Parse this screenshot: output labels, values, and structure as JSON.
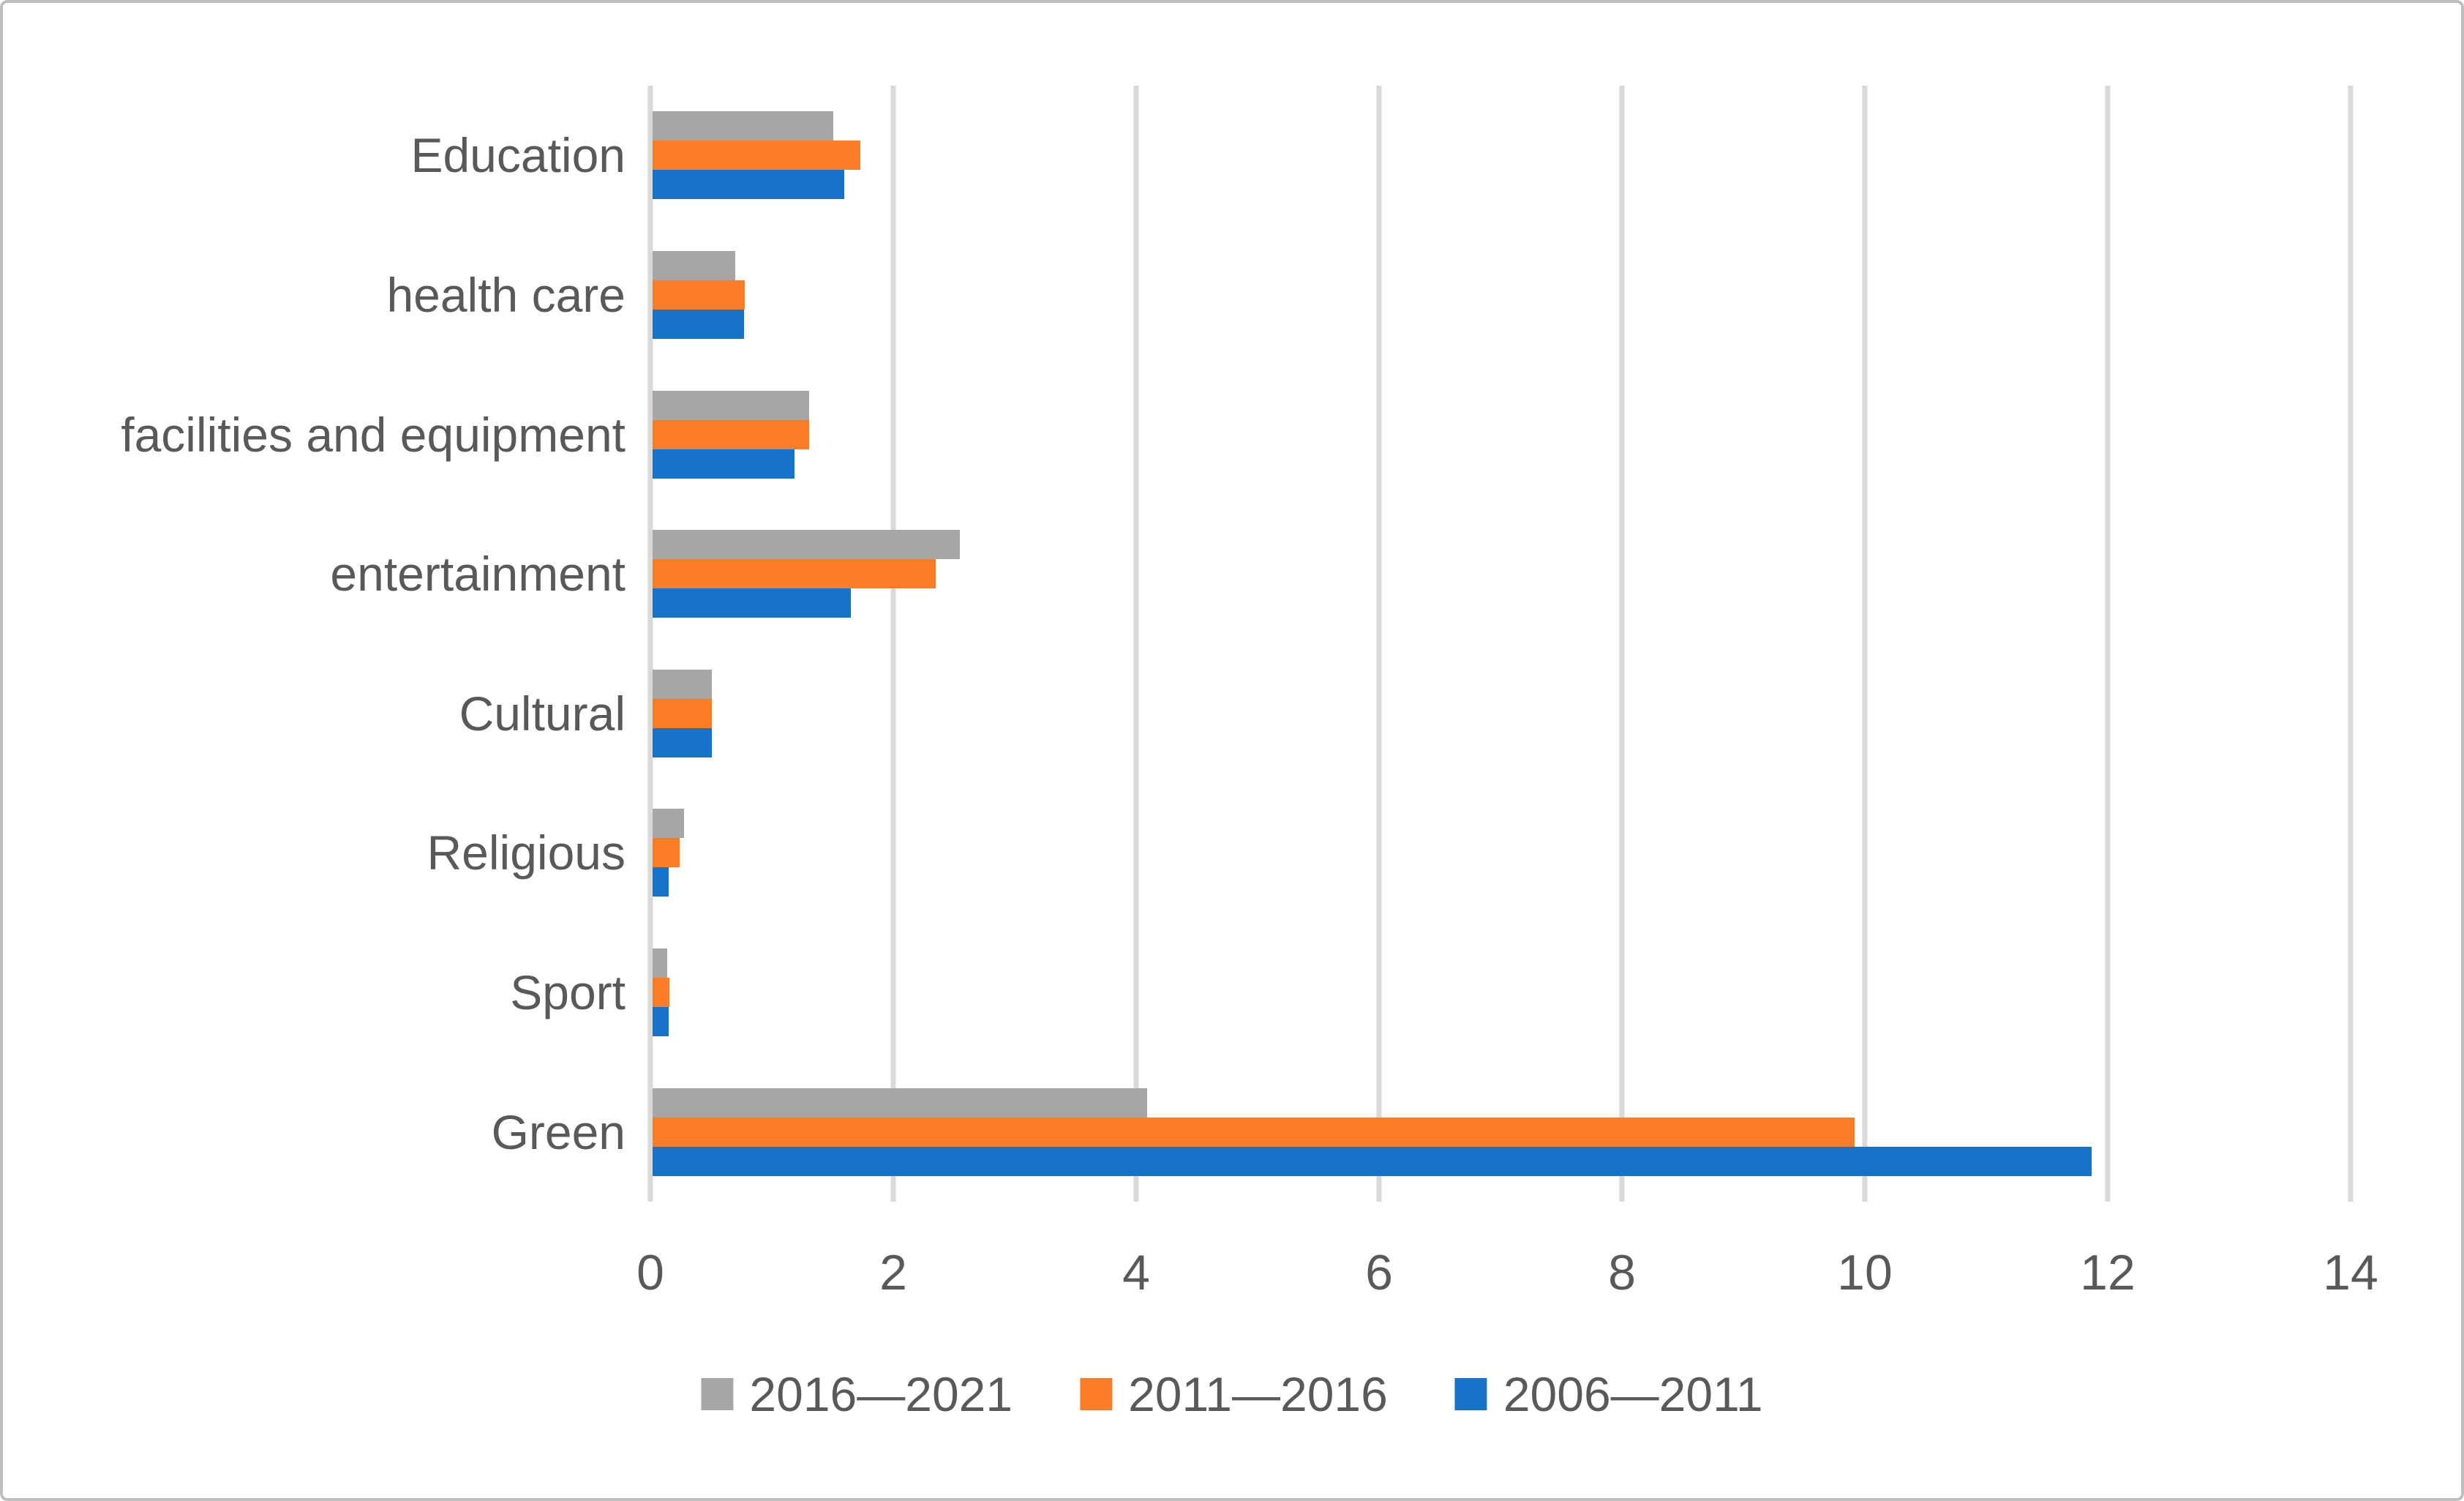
{
  "chart_data": {
    "type": "bar",
    "orientation": "horizontal",
    "title": "",
    "xlabel": "",
    "ylabel": "",
    "categories": [
      "Education",
      "health care",
      "facilities and equipment",
      "entertainment",
      "Cultural",
      "Religious",
      "Sport",
      "Green"
    ],
    "series": [
      {
        "name": "2016—2021",
        "color": "#A6A6A6",
        "values": [
          1.49,
          0.68,
          1.29,
          2.53,
          0.49,
          0.26,
          0.12,
          4.07
        ]
      },
      {
        "name": "2011—2016",
        "color": "#FB7E27",
        "values": [
          1.71,
          0.76,
          1.29,
          2.33,
          0.49,
          0.22,
          0.14,
          9.9
        ]
      },
      {
        "name": "2006—2011",
        "color": "#1773C9",
        "values": [
          1.58,
          0.75,
          1.17,
          1.63,
          0.49,
          0.13,
          0.13,
          11.85
        ]
      }
    ],
    "x_axis": {
      "min": 0,
      "max": 14,
      "tick_step": 2,
      "tick_labels": [
        "0",
        "2",
        "4",
        "6",
        "8",
        "10",
        "12",
        "14"
      ]
    },
    "grid": true,
    "legend_position": "bottom"
  },
  "styles": {
    "grid_color": "#D9D9D9",
    "text_color": "#595959",
    "border_color": "#BFBFBF",
    "plot_background": "#FFFFFF"
  }
}
